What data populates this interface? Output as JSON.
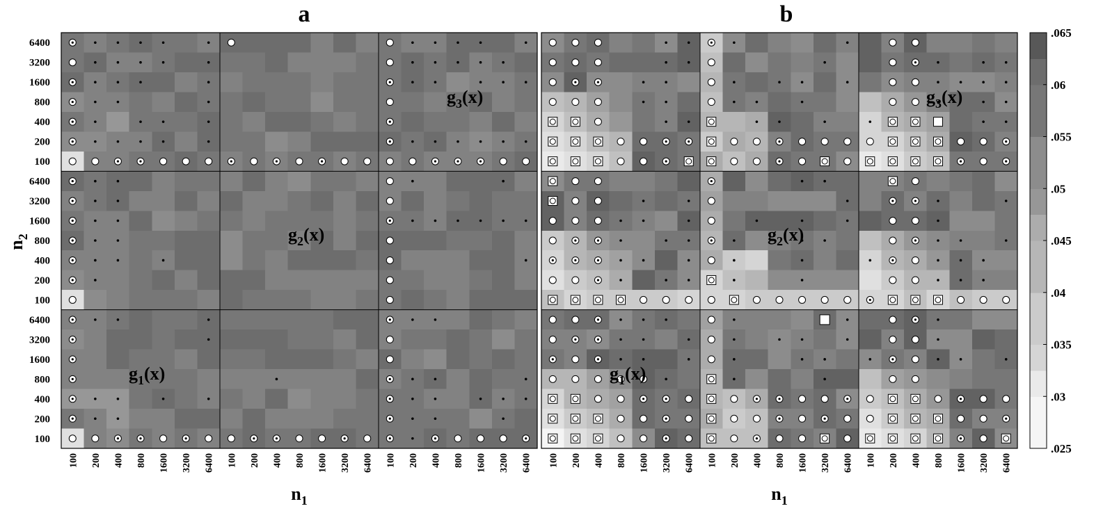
{
  "chart_data": {
    "type": "heatmap",
    "panels": [
      {
        "label": "a",
        "xlabel": "n",
        "xlabel_sub": "1"
      },
      {
        "label": "b",
        "xlabel": "n",
        "xlabel_sub": "1"
      }
    ],
    "ylabel": "n",
    "ylabel_sub": "2",
    "n_values": [
      "100",
      "200",
      "400",
      "800",
      "1600",
      "3200",
      "6400"
    ],
    "row_blocks": [
      "g3(x)",
      "g2(x)",
      "g1(x)"
    ],
    "function_labels": [
      {
        "text": "g",
        "sub": "3",
        "tail": "(x)"
      },
      {
        "text": "g",
        "sub": "2",
        "tail": "(x)"
      },
      {
        "text": "g",
        "sub": "1",
        "tail": "(x)"
      }
    ],
    "colorbar": {
      "min": 0.025,
      "max": 0.065,
      "tick_labels": [
        ".065",
        ".06",
        ".055",
        ".05",
        ".045",
        ".04",
        ".035",
        ".03",
        ".025"
      ],
      "tick_values": [
        0.065,
        0.06,
        0.055,
        0.05,
        0.045,
        0.04,
        0.035,
        0.03,
        0.025
      ],
      "levels": [
        0.025,
        0.0275,
        0.03,
        0.0325,
        0.035,
        0.0375,
        0.04,
        0.0425,
        0.045,
        0.0475,
        0.05,
        0.0525,
        0.055,
        0.0575,
        0.06,
        0.0625,
        0.065
      ]
    },
    "marker_legend": {
      "dot": "small dot",
      "circle": "open circle",
      "dotcircle": "circle with dot",
      "square": "open square",
      "squarecircle": "circle inside square",
      "filledsquare": "filled square"
    }
  }
}
